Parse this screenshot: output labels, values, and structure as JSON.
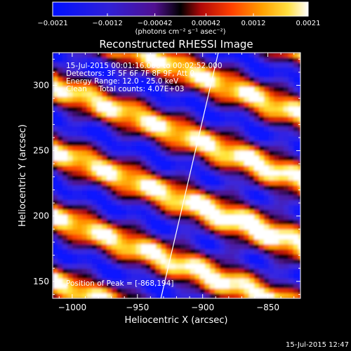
{
  "chart_data": {
    "type": "heatmap",
    "title": "Reconstructed RHESSI Image",
    "xlabel": "Heliocentric X (arcsec)",
    "ylabel": "Heliocentric Y (arcsec)",
    "xlim": [
      -1015,
      -825
    ],
    "ylim": [
      137,
      325
    ],
    "x_ticks": [
      -1000,
      -950,
      -900,
      -850
    ],
    "x_tick_labels": [
      "−1000",
      "−950",
      "−900",
      "−850"
    ],
    "y_ticks": [
      150,
      200,
      250,
      300
    ],
    "y_tick_labels": [
      "150",
      "200",
      "250",
      "300"
    ],
    "colorbar": {
      "range": [
        -0.0021,
        0.0021
      ],
      "ticks": [
        -0.0021,
        -0.0012,
        -0.00042,
        0.00042,
        0.0012,
        0.0021
      ],
      "tick_labels": [
        "−0.0021",
        "−0.0012",
        "−0.00042",
        "0.00042",
        "0.0012",
        "0.0021"
      ],
      "units_label": "(photons cm⁻² s⁻¹ asec⁻²)"
    },
    "annotations": [
      "15-Jul-2015 00:01:16.000 to 00:02:52.000",
      "Detectors: 3F 5F 6F 7F 8F 9F, Att 0",
      "Energy Range: 12.0 - 25.0 keV",
      "Clean     Total counts: 4.07E+03"
    ],
    "peak_label": "Position of Peak = [-868,194]",
    "peak": [
      -868,
      194
    ],
    "limb_line": [
      [
        -932,
        137
      ],
      [
        -888,
        325
      ]
    ],
    "timestamp": "15-Jul-2015 12:47"
  }
}
